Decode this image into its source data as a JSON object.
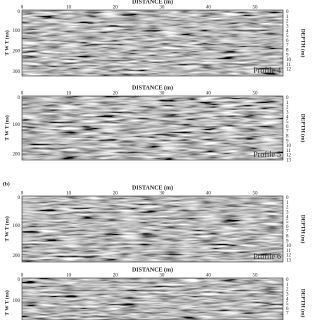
{
  "panels": [
    {
      "title": "DISTANCE (m)",
      "x_ticks": [
        0,
        10,
        20,
        30,
        40,
        50
      ],
      "y_label": "T W T (ns)",
      "y_ticks": [
        0,
        100,
        200,
        300
      ],
      "depth_label": "DEPTH (m)",
      "depth_ticks": [
        0,
        1,
        2,
        3,
        4,
        5,
        6,
        7,
        8,
        9,
        10,
        11,
        12
      ],
      "profile": "Profile 4"
    },
    {
      "title": "DISTANCE (m)",
      "x_ticks": [
        0,
        10,
        20,
        30,
        40,
        50
      ],
      "y_label": "T W T (ns)",
      "y_ticks": [
        0,
        100,
        200
      ],
      "depth_label": "DEPTH (m)",
      "depth_ticks": [
        0,
        1,
        2,
        3,
        4,
        5,
        6,
        7,
        8,
        9,
        10,
        11,
        12,
        13
      ],
      "profile": "Profile 5"
    },
    {
      "title": "DISTANCE (m)",
      "x_ticks": [
        0,
        10,
        20,
        30,
        40,
        50
      ],
      "y_label": "T W T (ns)",
      "y_ticks": [
        0,
        100,
        200
      ],
      "depth_label": "DEPTH (m)",
      "depth_ticks": [
        0,
        1,
        2,
        3,
        4,
        5,
        6,
        7,
        8,
        9,
        10,
        11,
        12,
        13
      ],
      "profile": "Profile 6"
    },
    {
      "title": "DISTANCE (m)",
      "x_ticks": [
        0,
        10,
        20,
        30,
        40,
        50
      ],
      "y_label": "T W T (ns)",
      "y_ticks": [
        0,
        100
      ],
      "depth_label": "DEPTH (m)",
      "depth_ticks": [
        0,
        1,
        2,
        3,
        4,
        5,
        6,
        7
      ],
      "profile": null
    }
  ],
  "label_b": "(b)"
}
